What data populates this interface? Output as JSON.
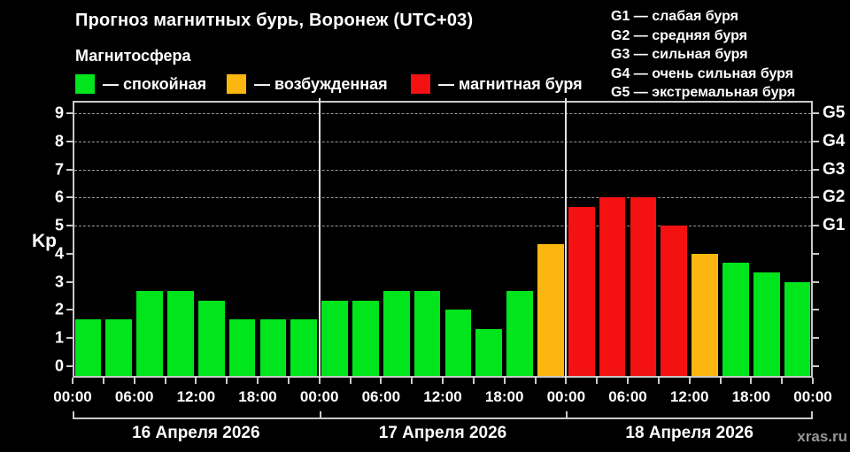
{
  "header": {
    "title": "Прогноз магнитных бурь, Воронеж (UTC+03)",
    "subtitle": "Магнитосфера"
  },
  "legend": {
    "items": [
      {
        "key": "quiet",
        "label": "— спокойная",
        "color": "#00E51B"
      },
      {
        "key": "unsettled",
        "label": "— возбужденная",
        "color": "#FBB70F"
      },
      {
        "key": "storm",
        "label": "— магнитная буря",
        "color": "#F31111"
      }
    ]
  },
  "g_legend": {
    "items": [
      "G1 — слабая буря",
      "G2 — средняя буря",
      "G3 — сильная буря",
      "G4 — очень сильная буря",
      "G5 — экстремальная буря"
    ]
  },
  "watermark": "xras.ru",
  "chart_data": {
    "type": "bar",
    "title": "Прогноз магнитных бурь, Воронеж (UTC+03)",
    "ylabel": "Kp",
    "ylim": [
      0,
      9
    ],
    "y_ticks": [
      0,
      1,
      2,
      3,
      4,
      5,
      6,
      7,
      8,
      9
    ],
    "gridlines_at": [
      5,
      6,
      7,
      8,
      9
    ],
    "grid": "dashed horizontal at G-levels only",
    "legend_position": "top",
    "right_axis": [
      {
        "value": 5,
        "label": "G1"
      },
      {
        "value": 6,
        "label": "G2"
      },
      {
        "value": 7,
        "label": "G3"
      },
      {
        "value": 8,
        "label": "G4"
      },
      {
        "value": 9,
        "label": "G5"
      }
    ],
    "bar_interval_hours": 3,
    "x_tick_labels": [
      "00:00",
      "06:00",
      "12:00",
      "18:00",
      "00:00",
      "06:00",
      "12:00",
      "18:00",
      "00:00",
      "06:00",
      "12:00",
      "18:00",
      "00:00"
    ],
    "days": [
      {
        "date": "16 Апреля 2026",
        "values": [
          1.67,
          1.67,
          2.67,
          2.67,
          2.33,
          1.67,
          1.67,
          1.67
        ],
        "status": [
          "quiet",
          "quiet",
          "quiet",
          "quiet",
          "quiet",
          "quiet",
          "quiet",
          "quiet"
        ]
      },
      {
        "date": "17 Апреля 2026",
        "values": [
          2.33,
          2.33,
          2.67,
          2.67,
          2.0,
          1.33,
          2.67,
          4.33
        ],
        "status": [
          "quiet",
          "quiet",
          "quiet",
          "quiet",
          "quiet",
          "quiet",
          "quiet",
          "unsettled"
        ]
      },
      {
        "date": "18 Апреля 2026",
        "values": [
          5.67,
          6.0,
          6.0,
          5.0,
          4.0,
          3.67,
          3.33,
          3.0
        ],
        "status": [
          "storm",
          "storm",
          "storm",
          "storm",
          "unsettled",
          "quiet",
          "quiet",
          "quiet"
        ]
      }
    ]
  }
}
